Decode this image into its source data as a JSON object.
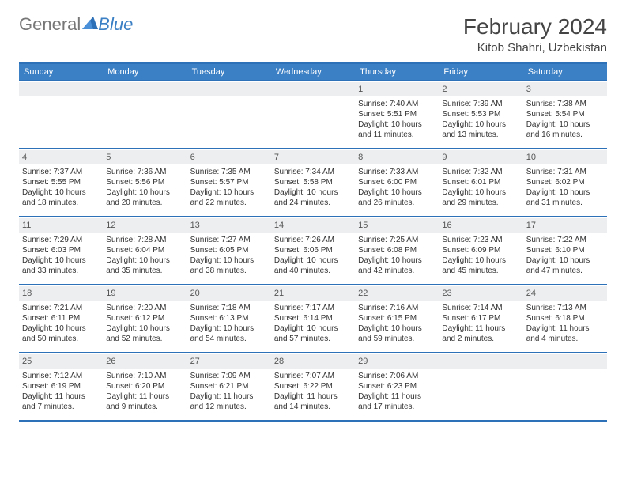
{
  "logo": {
    "general": "General",
    "blue": "Blue"
  },
  "title": "February 2024",
  "location": "Kitob Shahri, Uzbekistan",
  "colors": {
    "accent": "#3b7fc4",
    "header_bg": "#3b7fc4",
    "row_band": "#eceef0",
    "border": "#2d71b8"
  },
  "day_headers": [
    "Sunday",
    "Monday",
    "Tuesday",
    "Wednesday",
    "Thursday",
    "Friday",
    "Saturday"
  ],
  "weeks": [
    [
      {
        "n": "",
        "sunrise": "",
        "sunset": "",
        "daylight": ""
      },
      {
        "n": "",
        "sunrise": "",
        "sunset": "",
        "daylight": ""
      },
      {
        "n": "",
        "sunrise": "",
        "sunset": "",
        "daylight": ""
      },
      {
        "n": "",
        "sunrise": "",
        "sunset": "",
        "daylight": ""
      },
      {
        "n": "1",
        "sunrise": "Sunrise: 7:40 AM",
        "sunset": "Sunset: 5:51 PM",
        "daylight": "Daylight: 10 hours and 11 minutes."
      },
      {
        "n": "2",
        "sunrise": "Sunrise: 7:39 AM",
        "sunset": "Sunset: 5:53 PM",
        "daylight": "Daylight: 10 hours and 13 minutes."
      },
      {
        "n": "3",
        "sunrise": "Sunrise: 7:38 AM",
        "sunset": "Sunset: 5:54 PM",
        "daylight": "Daylight: 10 hours and 16 minutes."
      }
    ],
    [
      {
        "n": "4",
        "sunrise": "Sunrise: 7:37 AM",
        "sunset": "Sunset: 5:55 PM",
        "daylight": "Daylight: 10 hours and 18 minutes."
      },
      {
        "n": "5",
        "sunrise": "Sunrise: 7:36 AM",
        "sunset": "Sunset: 5:56 PM",
        "daylight": "Daylight: 10 hours and 20 minutes."
      },
      {
        "n": "6",
        "sunrise": "Sunrise: 7:35 AM",
        "sunset": "Sunset: 5:57 PM",
        "daylight": "Daylight: 10 hours and 22 minutes."
      },
      {
        "n": "7",
        "sunrise": "Sunrise: 7:34 AM",
        "sunset": "Sunset: 5:58 PM",
        "daylight": "Daylight: 10 hours and 24 minutes."
      },
      {
        "n": "8",
        "sunrise": "Sunrise: 7:33 AM",
        "sunset": "Sunset: 6:00 PM",
        "daylight": "Daylight: 10 hours and 26 minutes."
      },
      {
        "n": "9",
        "sunrise": "Sunrise: 7:32 AM",
        "sunset": "Sunset: 6:01 PM",
        "daylight": "Daylight: 10 hours and 29 minutes."
      },
      {
        "n": "10",
        "sunrise": "Sunrise: 7:31 AM",
        "sunset": "Sunset: 6:02 PM",
        "daylight": "Daylight: 10 hours and 31 minutes."
      }
    ],
    [
      {
        "n": "11",
        "sunrise": "Sunrise: 7:29 AM",
        "sunset": "Sunset: 6:03 PM",
        "daylight": "Daylight: 10 hours and 33 minutes."
      },
      {
        "n": "12",
        "sunrise": "Sunrise: 7:28 AM",
        "sunset": "Sunset: 6:04 PM",
        "daylight": "Daylight: 10 hours and 35 minutes."
      },
      {
        "n": "13",
        "sunrise": "Sunrise: 7:27 AM",
        "sunset": "Sunset: 6:05 PM",
        "daylight": "Daylight: 10 hours and 38 minutes."
      },
      {
        "n": "14",
        "sunrise": "Sunrise: 7:26 AM",
        "sunset": "Sunset: 6:06 PM",
        "daylight": "Daylight: 10 hours and 40 minutes."
      },
      {
        "n": "15",
        "sunrise": "Sunrise: 7:25 AM",
        "sunset": "Sunset: 6:08 PM",
        "daylight": "Daylight: 10 hours and 42 minutes."
      },
      {
        "n": "16",
        "sunrise": "Sunrise: 7:23 AM",
        "sunset": "Sunset: 6:09 PM",
        "daylight": "Daylight: 10 hours and 45 minutes."
      },
      {
        "n": "17",
        "sunrise": "Sunrise: 7:22 AM",
        "sunset": "Sunset: 6:10 PM",
        "daylight": "Daylight: 10 hours and 47 minutes."
      }
    ],
    [
      {
        "n": "18",
        "sunrise": "Sunrise: 7:21 AM",
        "sunset": "Sunset: 6:11 PM",
        "daylight": "Daylight: 10 hours and 50 minutes."
      },
      {
        "n": "19",
        "sunrise": "Sunrise: 7:20 AM",
        "sunset": "Sunset: 6:12 PM",
        "daylight": "Daylight: 10 hours and 52 minutes."
      },
      {
        "n": "20",
        "sunrise": "Sunrise: 7:18 AM",
        "sunset": "Sunset: 6:13 PM",
        "daylight": "Daylight: 10 hours and 54 minutes."
      },
      {
        "n": "21",
        "sunrise": "Sunrise: 7:17 AM",
        "sunset": "Sunset: 6:14 PM",
        "daylight": "Daylight: 10 hours and 57 minutes."
      },
      {
        "n": "22",
        "sunrise": "Sunrise: 7:16 AM",
        "sunset": "Sunset: 6:15 PM",
        "daylight": "Daylight: 10 hours and 59 minutes."
      },
      {
        "n": "23",
        "sunrise": "Sunrise: 7:14 AM",
        "sunset": "Sunset: 6:17 PM",
        "daylight": "Daylight: 11 hours and 2 minutes."
      },
      {
        "n": "24",
        "sunrise": "Sunrise: 7:13 AM",
        "sunset": "Sunset: 6:18 PM",
        "daylight": "Daylight: 11 hours and 4 minutes."
      }
    ],
    [
      {
        "n": "25",
        "sunrise": "Sunrise: 7:12 AM",
        "sunset": "Sunset: 6:19 PM",
        "daylight": "Daylight: 11 hours and 7 minutes."
      },
      {
        "n": "26",
        "sunrise": "Sunrise: 7:10 AM",
        "sunset": "Sunset: 6:20 PM",
        "daylight": "Daylight: 11 hours and 9 minutes."
      },
      {
        "n": "27",
        "sunrise": "Sunrise: 7:09 AM",
        "sunset": "Sunset: 6:21 PM",
        "daylight": "Daylight: 11 hours and 12 minutes."
      },
      {
        "n": "28",
        "sunrise": "Sunrise: 7:07 AM",
        "sunset": "Sunset: 6:22 PM",
        "daylight": "Daylight: 11 hours and 14 minutes."
      },
      {
        "n": "29",
        "sunrise": "Sunrise: 7:06 AM",
        "sunset": "Sunset: 6:23 PM",
        "daylight": "Daylight: 11 hours and 17 minutes."
      },
      {
        "n": "",
        "sunrise": "",
        "sunset": "",
        "daylight": ""
      },
      {
        "n": "",
        "sunrise": "",
        "sunset": "",
        "daylight": ""
      }
    ]
  ]
}
